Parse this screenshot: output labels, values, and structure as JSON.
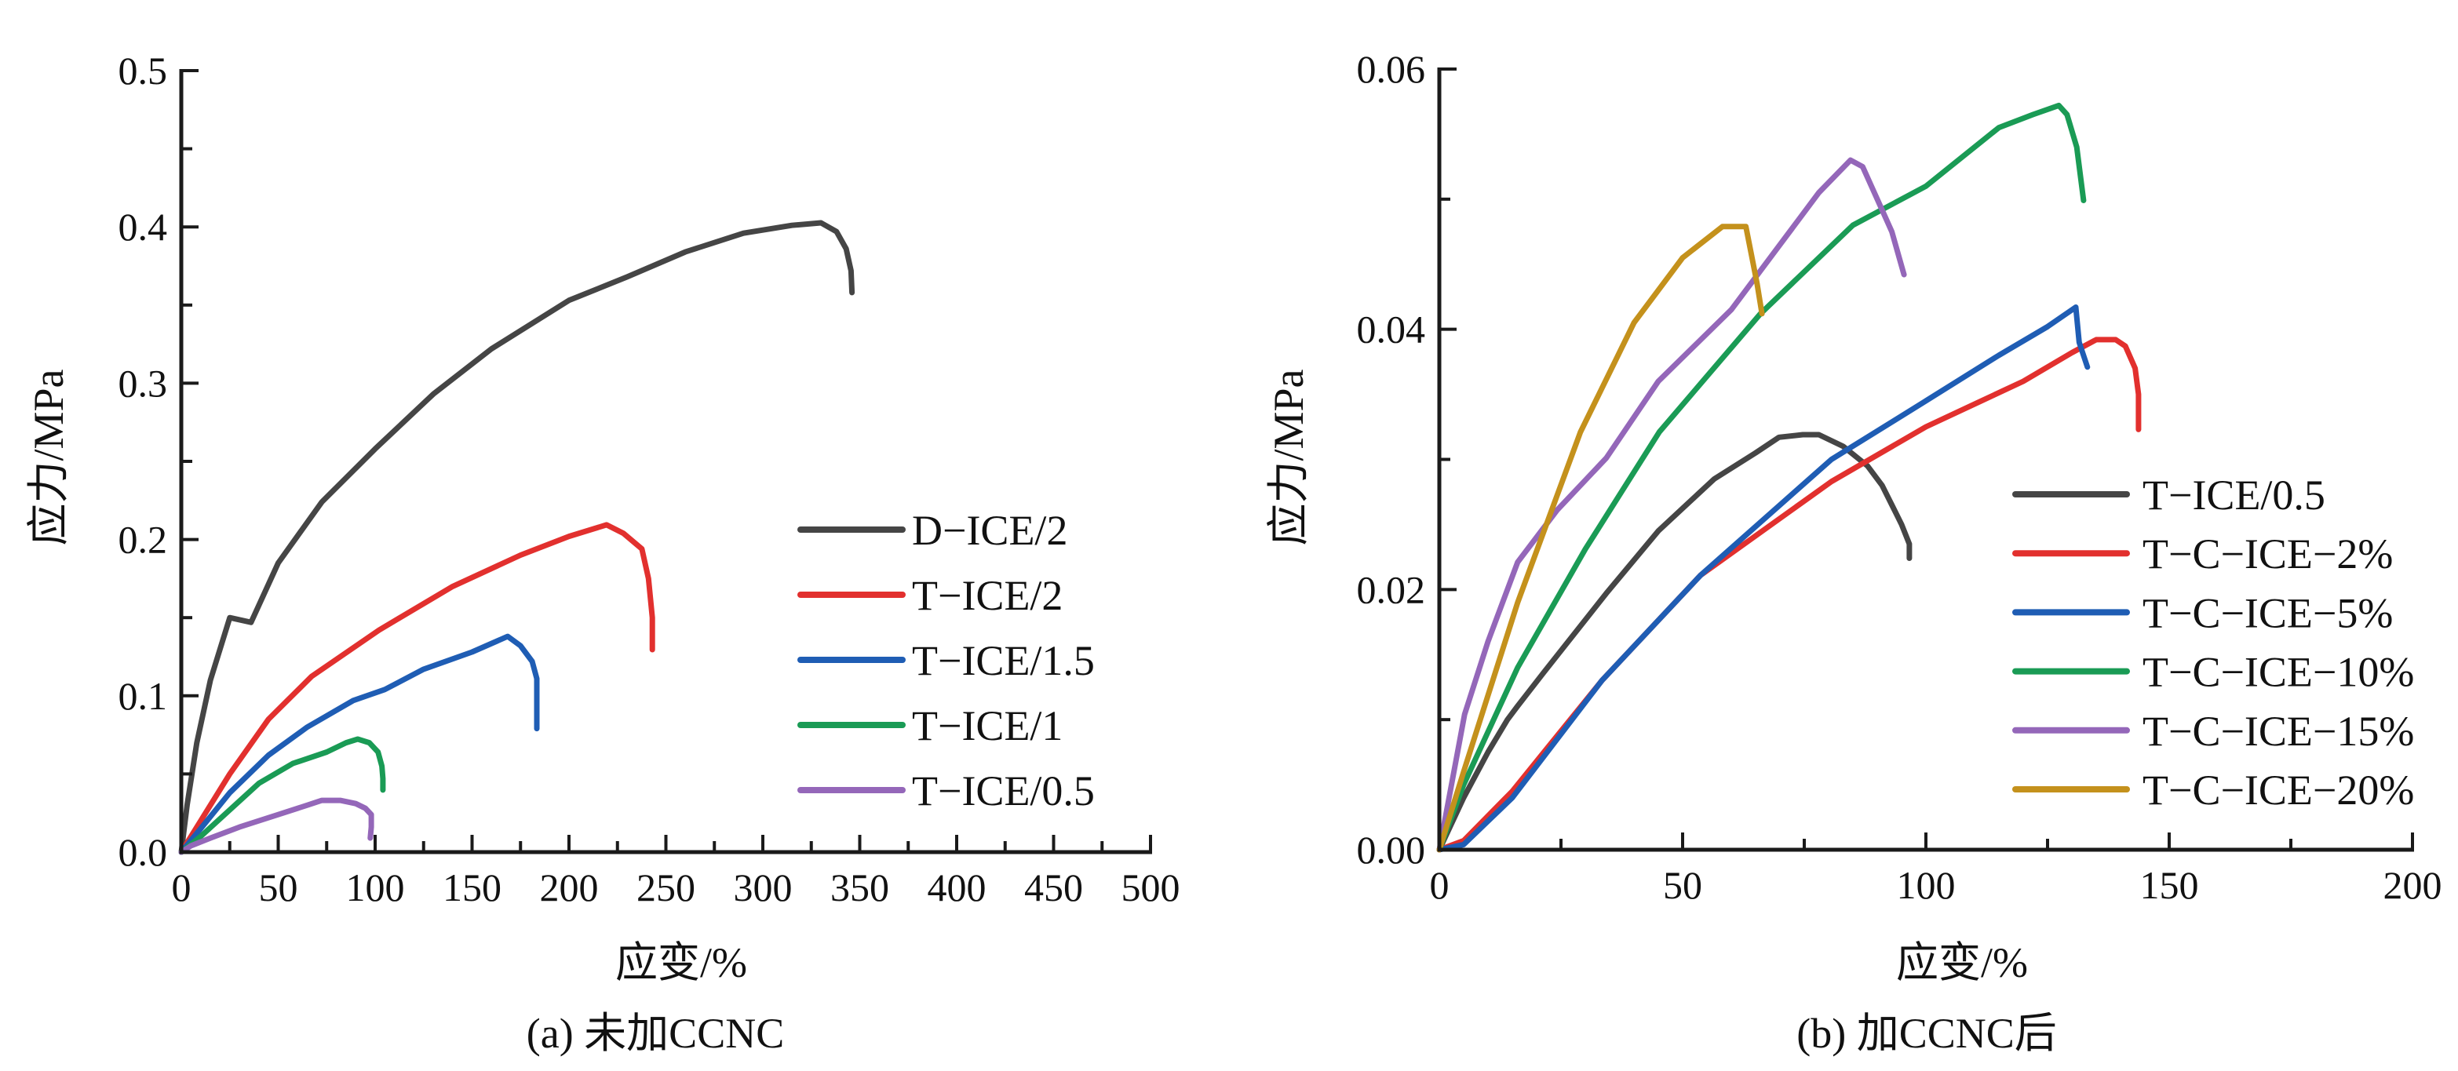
{
  "chart_data": [
    {
      "type": "line",
      "panel": "a",
      "caption": "(a) 未加CCNC",
      "xlabel": "应变/%",
      "ylabel": "应力/MPa",
      "xlim": [
        0,
        500
      ],
      "ylim": [
        0,
        0.5
      ],
      "x_ticks": [
        "0",
        "50",
        "100",
        "150",
        "200",
        "250",
        "300",
        "350",
        "400",
        "450",
        "500"
      ],
      "x_tick_values": [
        0,
        50,
        100,
        150,
        200,
        250,
        300,
        350,
        400,
        450,
        500
      ],
      "x_minor_step": 25,
      "y_ticks": [
        "0.0",
        "0.1",
        "0.2",
        "0.3",
        "0.4",
        "0.5"
      ],
      "y_tick_values": [
        0,
        0.1,
        0.2,
        0.3,
        0.4,
        0.5
      ],
      "y_minor_step": 0.05,
      "grid": false,
      "legend_position": "right-middle",
      "series": [
        {
          "name": "D-ICE/2",
          "label": "D−ICE/2",
          "color": "#454545",
          "x": [
            0,
            3,
            8,
            15,
            25,
            36,
            50,
            72.5,
            100,
            130,
            160,
            200,
            230,
            260,
            290,
            315,
            330,
            338,
            343,
            345.5,
            346
          ],
          "y": [
            0,
            0.03,
            0.07,
            0.11,
            0.15,
            0.147,
            0.185,
            0.224,
            0.258,
            0.293,
            0.322,
            0.353,
            0.368,
            0.384,
            0.396,
            0.401,
            0.4026,
            0.397,
            0.386,
            0.372,
            0.358
          ]
        },
        {
          "name": "T-ICE/2",
          "label": "T−ICE/2",
          "color": "#e2302e",
          "x": [
            0,
            10,
            25,
            45,
            67.2,
            102,
            140,
            175,
            200,
            219.4,
            228,
            237.6,
            241,
            243,
            243
          ],
          "y": [
            0,
            0.02,
            0.05,
            0.085,
            0.1124,
            0.142,
            0.17,
            0.19,
            0.202,
            0.2094,
            0.204,
            0.194,
            0.175,
            0.15,
            0.1295
          ]
        },
        {
          "name": "T-ICE/1.5",
          "label": "T−ICE/1.5",
          "color": "#1f5db4",
          "x": [
            0,
            10,
            25,
            45,
            65,
            88.7,
            105,
            125,
            150,
            168.4,
            175,
            181,
            183.4,
            183.4,
            183.4
          ],
          "y": [
            0,
            0.015,
            0.038,
            0.062,
            0.08,
            0.097,
            0.104,
            0.117,
            0.128,
            0.138,
            0.132,
            0.122,
            0.111,
            0.095,
            0.079
          ]
        },
        {
          "name": "T-ICE/1",
          "label": "T−ICE/1",
          "color": "#1a9b55",
          "x": [
            0,
            10,
            25,
            40,
            57.5,
            75,
            85,
            91,
            97,
            101.5,
            103.5,
            104,
            104
          ],
          "y": [
            0,
            0.01,
            0.027,
            0.044,
            0.0567,
            0.064,
            0.07,
            0.0723,
            0.07,
            0.064,
            0.055,
            0.047,
            0.0397
          ]
        },
        {
          "name": "T-ICE/0.5",
          "label": "T−ICE/0.5",
          "color": "#9467b9",
          "x": [
            0,
            5,
            15,
            30,
            50,
            65,
            72.5,
            82,
            90,
            95,
            98,
            98,
            97.5
          ],
          "y": [
            0,
            0.004,
            0.009,
            0.016,
            0.024,
            0.03,
            0.0331,
            0.0331,
            0.031,
            0.028,
            0.024,
            0.016,
            0.009
          ]
        }
      ]
    },
    {
      "type": "line",
      "panel": "b",
      "caption": "(b) 加CCNC后",
      "xlabel": "应变/%",
      "ylabel": "应力/MPa",
      "xlim": [
        0,
        200
      ],
      "ylim": [
        0,
        0.06
      ],
      "x_ticks": [
        "0",
        "50",
        "100",
        "150",
        "200"
      ],
      "x_tick_values": [
        0,
        50,
        100,
        150,
        200
      ],
      "x_minor_step": 25,
      "y_ticks": [
        "0.00",
        "0.02",
        "0.04",
        "0.06"
      ],
      "y_tick_values": [
        0,
        0.02,
        0.04,
        0.06
      ],
      "y_minor_step": 0.01,
      "grid": false,
      "legend_position": "right-lower",
      "series": [
        {
          "name": "T-ICE/0.5",
          "label": "T−ICE/0.5",
          "color": "#454545",
          "x": [
            0,
            5,
            10,
            14,
            16,
            21.4,
            34.3,
            45,
            56.5,
            65,
            69.8,
            74.7,
            78,
            83,
            88,
            91,
            93,
            95,
            96.6,
            96.6
          ],
          "y": [
            0,
            0.004,
            0.0075,
            0.01,
            0.011,
            0.0136,
            0.0197,
            0.0245,
            0.0285,
            0.0305,
            0.0317,
            0.0319,
            0.0319,
            0.031,
            0.0295,
            0.028,
            0.0265,
            0.025,
            0.0235,
            0.0224
          ]
        },
        {
          "name": "T-C-ICE-2%",
          "label": "T−C−ICE−2%",
          "color": "#e2302e",
          "x": [
            0,
            5,
            15,
            33.4,
            53.7,
            80.6,
            100,
            120,
            130,
            135,
            139,
            141,
            143,
            143.7,
            143.7
          ],
          "y": [
            0,
            0.0007,
            0.0045,
            0.013,
            0.0211,
            0.0283,
            0.0325,
            0.036,
            0.0382,
            0.0392,
            0.0392,
            0.0387,
            0.037,
            0.035,
            0.0323
          ]
        },
        {
          "name": "T-C-ICE-5%",
          "label": "T−C−ICE−5%",
          "color": "#1f5db4",
          "x": [
            0,
            5,
            15,
            33.4,
            53.7,
            80.6,
            100,
            115,
            125,
            130.8,
            131.5,
            133.2
          ],
          "y": [
            0,
            0.0004,
            0.004,
            0.013,
            0.0211,
            0.03,
            0.0345,
            0.038,
            0.0402,
            0.0417,
            0.039,
            0.0371
          ]
        },
        {
          "name": "T-C-ICE-10%",
          "label": "T−C−ICE−10%",
          "color": "#1a9b55",
          "x": [
            0,
            5,
            16.1,
            30,
            45.2,
            66,
            85,
            100,
            115,
            122,
            127.3,
            129,
            131,
            132.4
          ],
          "y": [
            0,
            0.005,
            0.014,
            0.0231,
            0.0321,
            0.0412,
            0.048,
            0.051,
            0.0555,
            0.0565,
            0.0572,
            0.0565,
            0.054,
            0.0499
          ]
        },
        {
          "name": "T-C-ICE-15%",
          "label": "T−C−ICE−15%",
          "color": "#9467b9",
          "x": [
            0,
            3,
            5.2,
            10,
            16.1,
            24.2,
            34.3,
            45,
            60,
            70,
            78,
            84.5,
            87,
            90,
            93,
            95.5
          ],
          "y": [
            0,
            0.006,
            0.0104,
            0.016,
            0.0221,
            0.0261,
            0.0301,
            0.036,
            0.0415,
            0.0465,
            0.0505,
            0.053,
            0.0525,
            0.05,
            0.0475,
            0.0442
          ]
        },
        {
          "name": "T-C-ICE-20%",
          "label": "T−C−ICE−20%",
          "color": "#c4911c",
          "x": [
            0,
            5,
            16.1,
            29,
            40,
            50,
            58.2,
            63,
            64,
            65.3,
            66.3
          ],
          "y": [
            0,
            0.006,
            0.019,
            0.0321,
            0.0405,
            0.0455,
            0.0479,
            0.0479,
            0.046,
            0.0435,
            0.0412
          ]
        }
      ]
    }
  ]
}
